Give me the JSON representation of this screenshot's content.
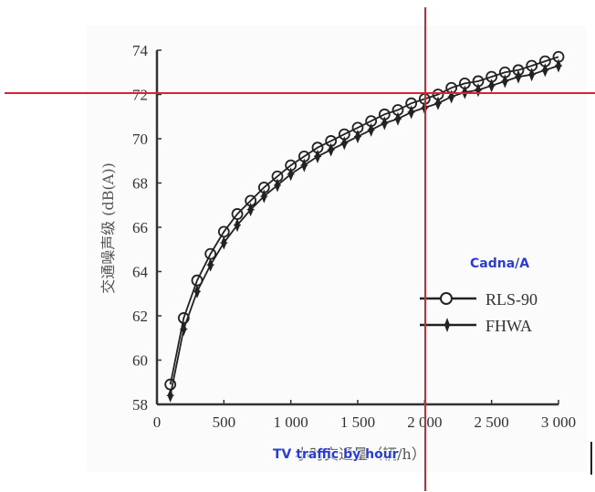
{
  "chart_data": {
    "type": "line",
    "title": "",
    "xlabel": "小时交通量（辆/h）",
    "ylabel": "交通噪声级 (dB(A))",
    "xlim": [
      0,
      3000
    ],
    "ylim": [
      58,
      74
    ],
    "x_ticks": [
      "0",
      "500",
      "1 000",
      "1 500",
      "2 000",
      "2 500",
      "3 000"
    ],
    "y_ticks": [
      "58",
      "60",
      "62",
      "64",
      "66",
      "68",
      "70",
      "72",
      "74"
    ],
    "grid": false,
    "legend_position": "lower right",
    "x": [
      100,
      200,
      300,
      400,
      500,
      600,
      700,
      800,
      900,
      1000,
      1100,
      1200,
      1300,
      1400,
      1500,
      1600,
      1700,
      1800,
      1900,
      2000,
      2100,
      2200,
      2300,
      2400,
      2500,
      2600,
      2700,
      2800,
      2900,
      3000
    ],
    "series": [
      {
        "name": "RLS-90",
        "marker": "open-circle",
        "values": [
          58.9,
          61.9,
          63.6,
          64.8,
          65.8,
          66.6,
          67.2,
          67.8,
          68.3,
          68.8,
          69.2,
          69.6,
          69.9,
          70.2,
          70.5,
          70.8,
          71.1,
          71.3,
          71.6,
          71.8,
          72.0,
          72.3,
          72.5,
          72.6,
          72.8,
          73.0,
          73.1,
          73.3,
          73.5,
          73.7
        ]
      },
      {
        "name": "FHWA",
        "marker": "filled-star",
        "values": [
          58.4,
          61.4,
          63.1,
          64.3,
          65.3,
          66.1,
          66.8,
          67.4,
          67.9,
          68.4,
          68.8,
          69.2,
          69.5,
          69.8,
          70.1,
          70.4,
          70.7,
          70.9,
          71.2,
          71.4,
          71.6,
          71.9,
          72.1,
          72.2,
          72.4,
          72.6,
          72.8,
          72.9,
          73.1,
          73.3
        ]
      }
    ],
    "annotations": [
      {
        "text": "Cadna/A",
        "color": "#2a3cd4"
      },
      {
        "text": "TV traffic by hour",
        "color": "#2a3cd4"
      }
    ],
    "crosshair": {
      "x_value": 2000,
      "y_value": 72,
      "color": "#d9232f"
    }
  },
  "overlays": {
    "model_label": "Cadna/A",
    "x_caption": "TV traffic by hour"
  },
  "legend": {
    "items": [
      {
        "label": "RLS-90"
      },
      {
        "label": "FHWA"
      }
    ]
  },
  "colors": {
    "crosshair": "#d9232f",
    "annotation": "#2a3cd4",
    "series": "#222222"
  }
}
